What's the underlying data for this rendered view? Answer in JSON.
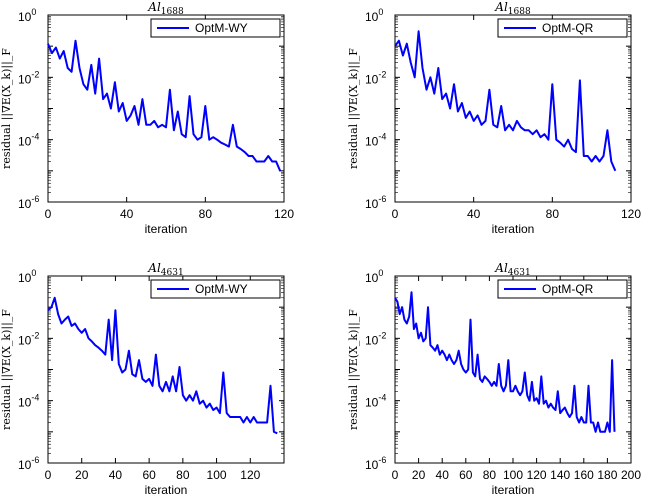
{
  "chart_data": [
    {
      "type": "line",
      "title": "Al",
      "title_subscript": "1688",
      "xlabel": "iteration",
      "ylabel": "residual ||∇E(X_k)||_F",
      "yscale": "log",
      "xlim": [
        0,
        120
      ],
      "ylim": [
        1e-06,
        1
      ],
      "xticks": [
        0,
        40,
        80,
        120
      ],
      "xtick_labels": [
        "0",
        "40",
        "80",
        "120"
      ],
      "yticks": [
        1e-06,
        0.0001,
        0.01,
        1
      ],
      "ytick_labels": [
        [
          "10",
          "-6"
        ],
        [
          "10",
          "-4"
        ],
        [
          "10",
          "-2"
        ],
        [
          "10",
          "0"
        ]
      ],
      "legend_position": "top-right",
      "series": [
        {
          "name": "OptM-WY",
          "color": "#0000ff",
          "x": [
            0,
            2,
            4,
            6,
            8,
            10,
            12,
            14,
            16,
            18,
            20,
            22,
            24,
            26,
            28,
            30,
            32,
            34,
            36,
            38,
            40,
            42,
            44,
            46,
            48,
            50,
            52,
            54,
            56,
            58,
            60,
            62,
            64,
            66,
            68,
            70,
            72,
            74,
            76,
            78,
            80,
            82,
            84,
            86,
            88,
            90,
            92,
            94,
            96,
            98,
            100,
            102,
            104,
            106,
            108,
            110,
            112,
            114,
            116,
            118
          ],
          "y": [
            0.12,
            0.06,
            0.09,
            0.04,
            0.07,
            0.02,
            0.015,
            0.15,
            0.02,
            0.006,
            0.004,
            0.025,
            0.003,
            0.04,
            0.002,
            0.003,
            0.001,
            0.007,
            0.0008,
            0.0015,
            0.0004,
            0.0006,
            0.0012,
            0.0003,
            0.002,
            0.0003,
            0.0003,
            0.0004,
            0.00025,
            0.0003,
            0.00025,
            0.004,
            0.0002,
            0.0008,
            0.00015,
            0.00012,
            0.0025,
            0.00015,
            0.0001,
            0.00012,
            0.0012,
            0.0001,
            0.00012,
            0.0001,
            8e-05,
            7e-05,
            6e-05,
            0.0003,
            6e-05,
            5e-05,
            4e-05,
            3e-05,
            3e-05,
            2e-05,
            2e-05,
            2e-05,
            3e-05,
            2e-05,
            2e-05,
            1e-05
          ]
        }
      ]
    },
    {
      "type": "line",
      "title": "Al",
      "title_subscript": "1688",
      "xlabel": "iteration",
      "ylabel": "residual ||∇E(X_k)||_F",
      "yscale": "log",
      "xlim": [
        0,
        120
      ],
      "ylim": [
        1e-06,
        1
      ],
      "xticks": [
        0,
        40,
        80,
        120
      ],
      "xtick_labels": [
        "0",
        "40",
        "80",
        "120"
      ],
      "yticks": [
        1e-06,
        0.0001,
        0.01,
        1
      ],
      "ytick_labels": [
        [
          "10",
          "-6"
        ],
        [
          "10",
          "-4"
        ],
        [
          "10",
          "-2"
        ],
        [
          "10",
          "0"
        ]
      ],
      "legend_position": "top-right",
      "series": [
        {
          "name": "OptM-QR",
          "color": "#0000ff",
          "x": [
            0,
            2,
            4,
            6,
            8,
            10,
            12,
            14,
            16,
            18,
            20,
            22,
            24,
            26,
            28,
            30,
            32,
            34,
            36,
            38,
            40,
            42,
            44,
            46,
            48,
            50,
            52,
            54,
            56,
            58,
            60,
            62,
            64,
            66,
            68,
            70,
            72,
            74,
            76,
            78,
            80,
            82,
            84,
            86,
            88,
            90,
            92,
            94,
            96,
            98,
            100,
            102,
            104,
            106,
            108,
            110,
            112
          ],
          "y": [
            0.1,
            0.15,
            0.05,
            0.12,
            0.03,
            0.01,
            0.3,
            0.02,
            0.004,
            0.01,
            0.003,
            0.02,
            0.002,
            0.003,
            0.001,
            0.006,
            0.0008,
            0.0015,
            0.0005,
            0.0008,
            0.0004,
            0.0006,
            0.0003,
            0.0004,
            0.004,
            0.0003,
            0.00025,
            0.0012,
            0.0002,
            0.0003,
            0.0002,
            0.0004,
            0.00025,
            0.0002,
            0.0002,
            0.00015,
            0.0002,
            0.00012,
            0.00015,
            0.0001,
            0.006,
            0.0001,
            8e-05,
            6e-05,
            0.0001,
            5e-05,
            4e-05,
            0.008,
            3e-05,
            3e-05,
            2e-05,
            3e-05,
            2e-05,
            3e-05,
            0.0002,
            2e-05,
            1e-05
          ]
        }
      ]
    },
    {
      "type": "line",
      "title": "Al",
      "title_subscript": "4631",
      "xlabel": "iteration",
      "ylabel": "residual ||∇E(X_k)||_F",
      "yscale": "log",
      "xlim": [
        0,
        140
      ],
      "ylim": [
        1e-06,
        1
      ],
      "xticks": [
        0,
        20,
        40,
        60,
        80,
        100,
        120
      ],
      "xtick_labels": [
        "0",
        "20",
        "40",
        "60",
        "80",
        "100",
        "120"
      ],
      "yticks": [
        1e-06,
        0.0001,
        0.01,
        1
      ],
      "ytick_labels": [
        [
          "10",
          "-6"
        ],
        [
          "10",
          "-4"
        ],
        [
          "10",
          "-2"
        ],
        [
          "10",
          "0"
        ]
      ],
      "legend_position": "top-right",
      "series": [
        {
          "name": "OptM-WY",
          "color": "#0000ff",
          "x": [
            0,
            2,
            4,
            6,
            8,
            10,
            12,
            14,
            16,
            18,
            20,
            22,
            24,
            26,
            28,
            30,
            32,
            34,
            36,
            38,
            40,
            42,
            44,
            46,
            48,
            50,
            52,
            54,
            56,
            58,
            60,
            62,
            64,
            66,
            68,
            70,
            72,
            74,
            76,
            78,
            80,
            82,
            84,
            86,
            88,
            90,
            92,
            94,
            96,
            98,
            100,
            102,
            104,
            106,
            108,
            110,
            112,
            114,
            116,
            118,
            120,
            122,
            124,
            126,
            128,
            130,
            132,
            134,
            136
          ],
          "y": [
            0.08,
            0.1,
            0.2,
            0.06,
            0.03,
            0.04,
            0.05,
            0.025,
            0.03,
            0.02,
            0.015,
            0.02,
            0.01,
            0.008,
            0.006,
            0.005,
            0.004,
            0.003,
            0.04,
            0.002,
            0.08,
            0.0015,
            0.0008,
            0.001,
            0.004,
            0.0007,
            0.0006,
            0.002,
            0.0005,
            0.0004,
            0.0005,
            0.0003,
            0.003,
            0.0003,
            0.0002,
            0.0004,
            0.0002,
            0.0006,
            0.0002,
            0.0012,
            0.00015,
            0.0001,
            0.00015,
            0.0001,
            0.0002,
            8e-05,
            0.0001,
            6e-05,
            8e-05,
            5e-05,
            6e-05,
            4e-05,
            0.0008,
            4e-05,
            3e-05,
            3e-05,
            3e-05,
            3e-05,
            2e-05,
            3e-05,
            2e-05,
            3e-05,
            2e-05,
            2e-05,
            2e-05,
            2e-05,
            0.0003,
            1e-05,
            9e-06
          ]
        }
      ]
    },
    {
      "type": "line",
      "title": "Al",
      "title_subscript": "4631",
      "xlabel": "iteration",
      "ylabel": "residual ||∇E(X_k)||_F",
      "yscale": "log",
      "xlim": [
        0,
        200
      ],
      "ylim": [
        1e-06,
        1
      ],
      "xticks": [
        0,
        20,
        40,
        60,
        80,
        100,
        120,
        140,
        160,
        180,
        200
      ],
      "xtick_labels": [
        "0",
        "20",
        "40",
        "60",
        "80",
        "100",
        "120",
        "140",
        "160",
        "180",
        "200"
      ],
      "yticks": [
        1e-06,
        0.0001,
        0.01,
        1
      ],
      "ytick_labels": [
        [
          "10",
          "-6"
        ],
        [
          "10",
          "-4"
        ],
        [
          "10",
          "-2"
        ],
        [
          "10",
          "0"
        ]
      ],
      "legend_position": "top-right",
      "series": [
        {
          "name": "OptM-QR",
          "color": "#0000ff",
          "x": [
            0,
            2,
            4,
            6,
            8,
            10,
            12,
            14,
            16,
            18,
            20,
            22,
            24,
            26,
            28,
            30,
            32,
            34,
            36,
            38,
            40,
            42,
            44,
            46,
            48,
            50,
            52,
            54,
            56,
            58,
            60,
            62,
            64,
            66,
            68,
            70,
            72,
            74,
            76,
            78,
            80,
            82,
            84,
            86,
            88,
            90,
            92,
            94,
            96,
            98,
            100,
            102,
            104,
            106,
            108,
            110,
            112,
            114,
            116,
            118,
            120,
            122,
            124,
            126,
            128,
            130,
            132,
            134,
            136,
            138,
            140,
            142,
            144,
            146,
            148,
            150,
            152,
            154,
            156,
            158,
            160,
            162,
            164,
            166,
            168,
            170,
            172,
            174,
            176,
            178,
            180,
            182,
            184,
            186
          ],
          "y": [
            0.2,
            0.15,
            0.06,
            0.1,
            0.04,
            0.03,
            0.05,
            0.3,
            0.02,
            0.03,
            0.01,
            0.015,
            0.008,
            0.01,
            0.1,
            0.006,
            0.005,
            0.004,
            0.006,
            0.003,
            0.004,
            0.003,
            0.002,
            0.003,
            0.002,
            0.0015,
            0.002,
            0.004,
            0.0015,
            0.001,
            0.0008,
            0.001,
            0.04,
            0.0008,
            0.0006,
            0.003,
            0.0005,
            0.0004,
            0.0006,
            0.0005,
            0.0004,
            0.0003,
            0.0004,
            0.0003,
            0.0015,
            0.0003,
            0.0002,
            0.0003,
            0.002,
            0.0002,
            0.0002,
            0.0003,
            0.0002,
            0.00015,
            0.0002,
            0.0008,
            0.00015,
            0.0001,
            0.0004,
            0.0001,
            0.00012,
            8e-05,
            0.0006,
            8e-05,
            0.0001,
            6e-05,
            8e-05,
            6e-05,
            5e-05,
            0.0002,
            4e-05,
            5e-05,
            6e-05,
            4e-05,
            3e-05,
            4e-05,
            0.0003,
            3e-05,
            2e-05,
            3e-05,
            2e-05,
            2e-05,
            0.0003,
            2e-05,
            2e-05,
            1e-05,
            2e-05,
            1e-05,
            1e-05,
            1e-05,
            2e-05,
            1e-05,
            0.002,
            1e-05
          ]
        }
      ]
    }
  ]
}
